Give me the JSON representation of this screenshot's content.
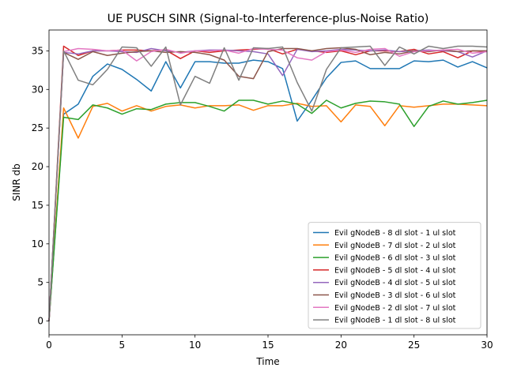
{
  "chart_data": {
    "type": "line",
    "title": "UE PUSCH SINR (Signal-to-Interference-plus-Noise Ratio)",
    "xlabel": "Time",
    "ylabel": "SINR db",
    "xlim": [
      0,
      30
    ],
    "ylim": [
      -1.78,
      37.7
    ],
    "xticks": [
      0,
      5,
      10,
      15,
      20,
      25,
      30
    ],
    "yticks": [
      0,
      5,
      10,
      15,
      20,
      25,
      30,
      35
    ],
    "grid": false,
    "legend_position": "lower-right",
    "x": [
      0,
      1,
      2,
      3,
      4,
      5,
      6,
      7,
      8,
      9,
      10,
      11,
      12,
      13,
      14,
      15,
      16,
      17,
      18,
      19,
      20,
      21,
      22,
      23,
      24,
      25,
      26,
      27,
      28,
      29,
      30
    ],
    "series": [
      {
        "name": "Evil gNodeB - 8 dl slot - 1 ul slot",
        "color": "#1f77b4",
        "values": [
          0,
          26.8,
          28.1,
          31.7,
          33.3,
          32.6,
          31.3,
          29.8,
          33.6,
          30.2,
          33.6,
          33.6,
          33.4,
          33.4,
          33.8,
          33.6,
          32.7,
          25.9,
          28.6,
          31.5,
          33.5,
          33.7,
          32.7,
          32.7,
          32.7,
          33.7,
          33.6,
          33.8,
          32.9,
          33.6,
          32.8
        ]
      },
      {
        "name": "Evil gNodeB - 7 dl slot - 2 ul slot",
        "color": "#ff7f0e",
        "values": [
          0,
          27.6,
          23.7,
          27.8,
          28.2,
          27.2,
          27.9,
          27.2,
          27.8,
          28.0,
          27.6,
          27.9,
          27.9,
          28.0,
          27.3,
          27.9,
          27.9,
          28.2,
          27.8,
          27.9,
          25.8,
          28.0,
          27.8,
          25.3,
          27.9,
          27.7,
          27.9,
          28.1,
          28.1,
          28.0,
          27.9
        ]
      },
      {
        "name": "Evil gNodeB - 6 dl slot - 3 ul slot",
        "color": "#2ca02c",
        "values": [
          0,
          26.4,
          26.1,
          28.0,
          27.6,
          26.8,
          27.5,
          27.4,
          28.1,
          28.3,
          28.3,
          27.8,
          27.2,
          28.6,
          28.6,
          28.1,
          28.5,
          28.1,
          26.9,
          28.6,
          27.6,
          28.2,
          28.5,
          28.4,
          28.1,
          25.2,
          27.8,
          28.5,
          28.1,
          28.3,
          28.6
        ]
      },
      {
        "name": "Evil gNodeB - 5 dl slot - 4 ul slot",
        "color": "#d62728",
        "values": [
          0,
          35.6,
          34.4,
          35.0,
          35.0,
          35.1,
          35.1,
          35.0,
          35.1,
          34.0,
          35.0,
          34.8,
          35.0,
          35.1,
          35.2,
          35.3,
          34.6,
          35.2,
          35.0,
          34.8,
          35.0,
          34.5,
          35.0,
          35.0,
          34.9,
          35.2,
          34.6,
          34.9,
          34.1,
          35.0,
          34.9
        ]
      },
      {
        "name": "Evil gNodeB - 4 dl slot - 5 ul slot",
        "color": "#9467bd",
        "values": [
          0,
          34.8,
          34.6,
          35.0,
          35.0,
          34.9,
          34.8,
          35.3,
          35.0,
          34.8,
          35.0,
          35.1,
          35.1,
          35.0,
          34.9,
          34.6,
          31.8,
          35.2,
          34.9,
          35.0,
          35.2,
          35.1,
          35.0,
          35.1,
          34.9,
          35.0,
          35.1,
          35.0,
          34.9,
          34.2,
          35.0
        ]
      },
      {
        "name": "Evil gNodeB - 3 dl slot - 6 ul slot",
        "color": "#8c564b",
        "values": [
          0,
          34.8,
          33.9,
          34.9,
          34.4,
          34.7,
          34.9,
          35.0,
          34.8,
          34.9,
          34.8,
          34.5,
          33.8,
          31.7,
          31.4,
          34.9,
          35.3,
          35.3,
          35.0,
          35.3,
          35.4,
          35.2,
          34.5,
          34.8,
          34.6,
          35.0,
          34.9,
          35.1,
          34.9,
          35.0,
          35.0
        ]
      },
      {
        "name": "Evil gNodeB - 2 dl slot - 7 ul slot",
        "color": "#e377c2",
        "values": [
          0,
          34.9,
          35.3,
          35.2,
          35.0,
          35.1,
          33.7,
          34.9,
          35.2,
          34.7,
          35.0,
          35.0,
          35.1,
          34.7,
          35.3,
          35.2,
          35.1,
          34.1,
          33.8,
          34.9,
          35.1,
          34.8,
          35.2,
          35.3,
          34.3,
          34.9,
          35.0,
          35.1,
          35.2,
          34.7,
          34.9
        ]
      },
      {
        "name": "Evil gNodeB - 1 dl slot - 8 ul slot",
        "color": "#7f7f7f",
        "values": [
          0,
          35.0,
          31.2,
          30.6,
          32.6,
          35.5,
          35.4,
          33.0,
          35.5,
          28.0,
          31.7,
          30.8,
          35.4,
          31.2,
          35.4,
          35.3,
          35.5,
          30.9,
          27.2,
          32.6,
          35.4,
          35.5,
          35.6,
          33.1,
          35.5,
          34.6,
          35.6,
          35.3,
          35.6,
          35.6,
          35.5
        ]
      }
    ]
  }
}
